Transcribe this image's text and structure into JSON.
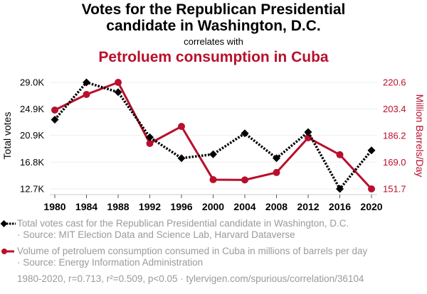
{
  "header": {
    "title_line1": "Votes for the Republican Presidential",
    "title_line2": "candidate in Washington, D.C.",
    "connector": "correlates with",
    "title2": "Petroluem consumption in Cuba"
  },
  "colors": {
    "series1": "#000000",
    "series2": "#b8102c",
    "legend_text": "#9a9a9a",
    "grid": "#efefef"
  },
  "legend": {
    "series1_line1": "Total votes cast for the Republican Presidential candidate in Washington, D.C.",
    "series1_line2": "· Source: MIT Election Data and Science Lab, Harvard Dataverse",
    "series2_line1": "Volume of petroluem consumption consumed in Cuba in millions of barrels per day",
    "series2_line2": "· Source: Energy Information Administration"
  },
  "footer": "1980-2020, r=0.713, r²=0.509, p<0.05 · tylervigen.com/spurious/correlation/36104",
  "chart_data": {
    "type": "line",
    "title": "Votes for the Republican Presidential candidate in Washington, D.C. correlates with Petroluem consumption in Cuba",
    "x": [
      1980,
      1984,
      1988,
      1992,
      1996,
      2000,
      2004,
      2008,
      2012,
      2016,
      2020
    ],
    "xlabel": "",
    "ylabel": "Total votes",
    "y2label": "Million Barrels/Day",
    "ylim": [
      12.7,
      29.0
    ],
    "y2lim": [
      151.7,
      220.6
    ],
    "yticks": [
      "29.0K",
      "24.9K",
      "20.9K",
      "16.8K",
      "12.7K"
    ],
    "ytick_values": [
      29.0,
      24.9,
      20.9,
      16.8,
      12.7
    ],
    "y2ticks": [
      "220.6",
      "203.4",
      "186.2",
      "169.0",
      "151.7"
    ],
    "y2tick_values": [
      220.6,
      203.4,
      186.2,
      169.0,
      151.7
    ],
    "grid": true,
    "legend_position": "bottom",
    "series": [
      {
        "name": "Total votes cast for the Republican Presidential candidate in Washington, D.C.",
        "axis": "left",
        "unit": "thousands of votes",
        "style": "dotted-diamond",
        "values": [
          23.3,
          29.0,
          27.5,
          20.6,
          17.4,
          18.0,
          21.2,
          17.4,
          21.4,
          12.7,
          18.6
        ]
      },
      {
        "name": "Volume of petroluem consumption consumed in Cuba in millions of barrels per day",
        "axis": "right",
        "unit": "Million Barrels/Day",
        "style": "solid-circle",
        "values": [
          202.7,
          212.8,
          220.6,
          181.1,
          192.1,
          157.7,
          157.5,
          162.3,
          184.8,
          173.8,
          151.7
        ]
      }
    ]
  }
}
